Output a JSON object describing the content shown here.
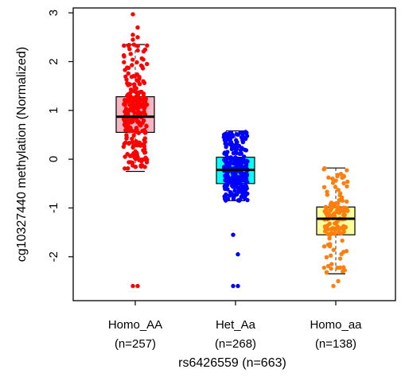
{
  "chart_data": {
    "type": "box",
    "xlabel": "rs6426559 (n=663)",
    "ylabel": "cg10327440 methylation (Normalized)",
    "ylim": [
      -2.9,
      3.1
    ],
    "yticks": [
      -2,
      -1,
      0,
      1,
      2,
      3
    ],
    "grid": false,
    "categories": [
      {
        "label": "Homo_AA",
        "count_label": "(n=257)",
        "n": 257,
        "box_color": "#f4b6c2",
        "point_color": "#ff0000"
      },
      {
        "label": "Het_Aa",
        "count_label": "(n=268)",
        "n": 268,
        "box_color": "#00ffff",
        "point_color": "#0000ff"
      },
      {
        "label": "Homo_aa",
        "count_label": "(n=138)",
        "n": 138,
        "box_color": "#ffff99",
        "point_color": "#ff7f0e"
      }
    ],
    "boxes": [
      {
        "whisker_low": -0.25,
        "q1": 0.55,
        "median": 0.87,
        "q3": 1.28,
        "whisker_high": 2.35
      },
      {
        "whisker_low": -0.85,
        "q1": -0.5,
        "median": -0.22,
        "q3": 0.04,
        "whisker_high": 0.58
      },
      {
        "whisker_low": -2.35,
        "q1": -1.55,
        "median": -1.22,
        "q3": -0.98,
        "whisker_high": -0.18
      }
    ],
    "outliers": [
      [
        2.97,
        2.7,
        2.55,
        2.5,
        2.45,
        -2.6,
        -2.6
      ],
      [
        -1.55,
        -1.95,
        -2.6,
        -2.6
      ],
      [
        -2.6,
        -2.5
      ]
    ]
  }
}
